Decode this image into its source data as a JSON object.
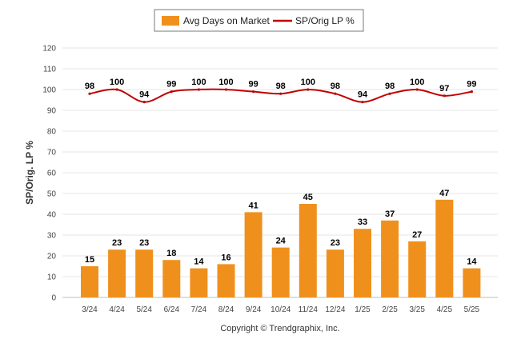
{
  "chart_data": {
    "type": "bar",
    "categories": [
      "3/24",
      "4/24",
      "5/24",
      "6/24",
      "7/24",
      "8/24",
      "9/24",
      "10/24",
      "11/24",
      "12/24",
      "1/25",
      "2/25",
      "3/25",
      "4/25",
      "5/25"
    ],
    "series": [
      {
        "name": "Avg Days on Market",
        "type": "bar",
        "color": "#F0901C",
        "values": [
          15,
          23,
          23,
          18,
          14,
          16,
          41,
          24,
          45,
          23,
          33,
          37,
          27,
          47,
          14
        ]
      },
      {
        "name": "SP/Orig LP %",
        "type": "line",
        "color": "#C00000",
        "values": [
          98,
          100,
          94,
          99,
          100,
          100,
          99,
          98,
          100,
          98,
          94,
          98,
          100,
          97,
          99
        ]
      }
    ],
    "ylabel": "SP/Orig. LP %",
    "ylim": [
      0,
      120
    ],
    "yticks": [
      0,
      10,
      20,
      30,
      40,
      50,
      60,
      70,
      80,
      90,
      100,
      110,
      120
    ],
    "grid": true,
    "legend_position": "top-center"
  },
  "footer": {
    "copyright": "Copyright © Trendgraphix, Inc."
  }
}
